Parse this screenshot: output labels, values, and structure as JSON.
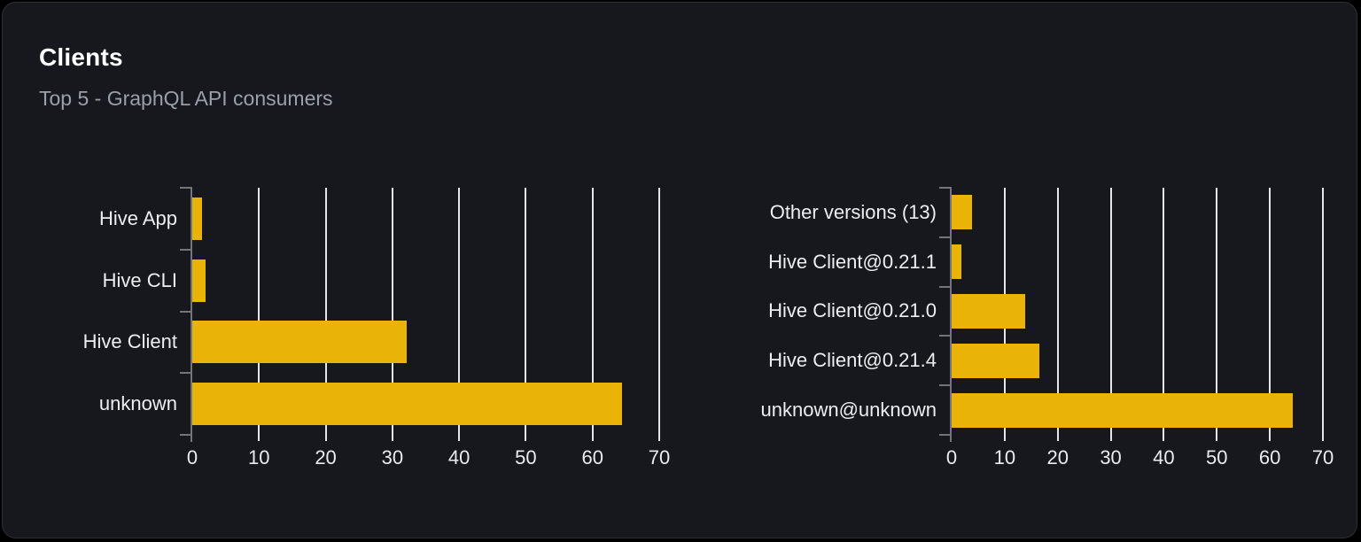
{
  "card": {
    "title": "Clients",
    "subtitle": "Top 5 - GraphQL API consumers"
  },
  "colors": {
    "page_bg": "#000000",
    "card_bg": "#16181d",
    "card_border": "#2c2f36",
    "title": "#ffffff",
    "subtitle": "#9aa0a8",
    "bar": "#eab308",
    "grid_line": "#e4e6ea",
    "axis": "#72757c",
    "label": "#eceef1"
  },
  "chart_data": [
    {
      "type": "bar",
      "orientation": "horizontal",
      "title": "",
      "xlabel": "",
      "ylabel": "",
      "legend": false,
      "grid": true,
      "categories": [
        "Hive App",
        "Hive CLI",
        "Hive Client",
        "unknown"
      ],
      "values": [
        1.4,
        2,
        32.2,
        64.4
      ],
      "xlim": [
        0,
        70
      ],
      "xticks": [
        0,
        10,
        20,
        30,
        40,
        50,
        60,
        70
      ]
    },
    {
      "type": "bar",
      "orientation": "horizontal",
      "title": "",
      "xlabel": "",
      "ylabel": "",
      "legend": false,
      "grid": true,
      "categories": [
        "Other versions (13)",
        "Hive Client@0.21.1",
        "Hive Client@0.21.0",
        "Hive Client@0.21.4",
        "unknown@unknown"
      ],
      "values": [
        3.9,
        1.8,
        13.8,
        16.5,
        64.3
      ],
      "xlim": [
        0,
        70
      ],
      "xticks": [
        0,
        10,
        20,
        30,
        40,
        50,
        60,
        70
      ]
    }
  ]
}
